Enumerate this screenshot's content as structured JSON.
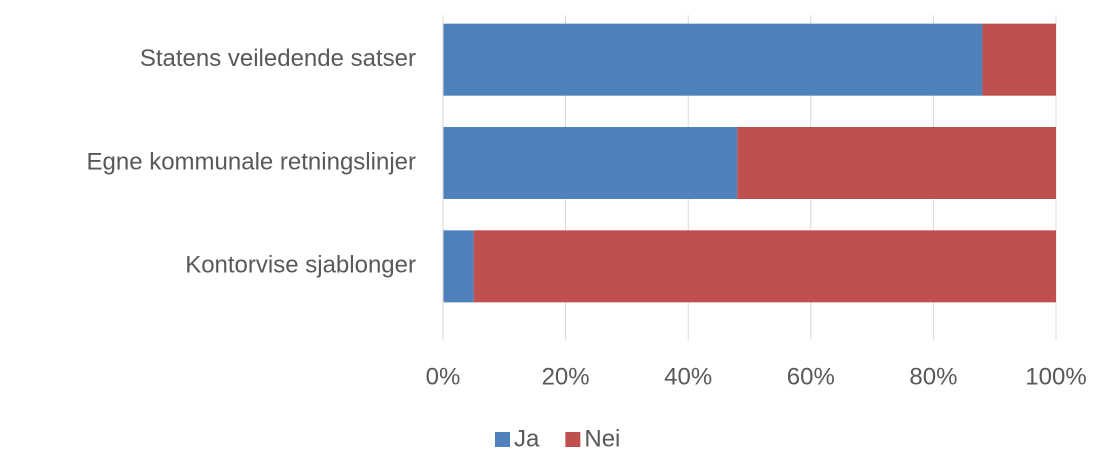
{
  "chart_data": {
    "type": "bar",
    "orientation": "horizontal",
    "stacked": true,
    "categories": [
      "Statens veiledende satser",
      "Egne kommunale retningslinjer",
      "Kontorvise sjablonger"
    ],
    "series": [
      {
        "name": "Ja",
        "color": "#4f81bd",
        "values": [
          88,
          48,
          5
        ]
      },
      {
        "name": "Nei",
        "color": "#c0504d",
        "values": [
          12,
          52,
          95
        ]
      }
    ],
    "xlim": [
      0,
      100
    ],
    "xticks": [
      {
        "value": 0,
        "label": "0%"
      },
      {
        "value": 20,
        "label": "20%"
      },
      {
        "value": 40,
        "label": "40%"
      },
      {
        "value": 60,
        "label": "60%"
      },
      {
        "value": 80,
        "label": "80%"
      },
      {
        "value": 100,
        "label": "100%"
      }
    ],
    "grid": true,
    "legend": "bottom"
  }
}
